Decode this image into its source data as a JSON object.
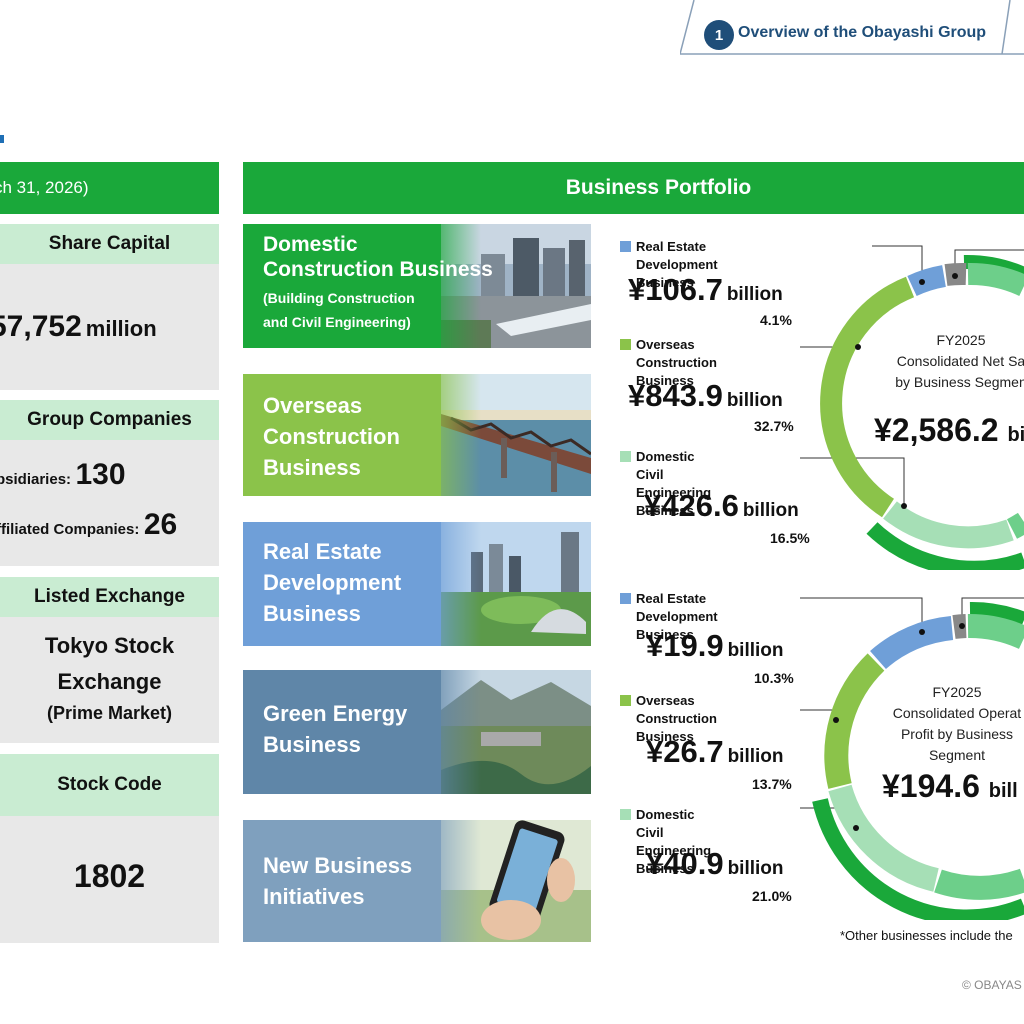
{
  "header": {
    "section_number": "1",
    "section_title": "Overview of the Obayashi Group"
  },
  "left_panel": {
    "heading": "ch 31, 2026)",
    "share_capital": {
      "label": "Share Capital",
      "value": "57,752",
      "unit": "million"
    },
    "group_companies": {
      "label": "Group Companies",
      "subsidiaries_label": "bsidiaries:",
      "subsidiaries_count": "130",
      "affiliated_label": "ffiliated Companies:",
      "affiliated_count": "26"
    },
    "listed_exchange": {
      "label": "Listed Exchange",
      "line1": "Tokyo Stock",
      "line2": "Exchange",
      "line3": "(Prime Market)"
    },
    "stock_code": {
      "label": "Stock Code",
      "value": "1802"
    }
  },
  "portfolio": {
    "heading": "Business Portfolio",
    "businesses": [
      {
        "title": "Domestic\nConstruction Business",
        "subtitle": "(Building Construction\nand Civil Engineering)",
        "color": "#1aa83a"
      },
      {
        "title": "Overseas\nConstruction\nBusiness",
        "subtitle": "",
        "color": "#8bc34a"
      },
      {
        "title": "Real Estate\nDevelopment\nBusiness",
        "subtitle": "",
        "color": "#6f9fd8"
      },
      {
        "title": "Green Energy\nBusiness",
        "subtitle": "",
        "color": "#5f86a8"
      },
      {
        "title": "New Business\nInitiatives",
        "subtitle": "",
        "color": "#7fa0be"
      }
    ]
  },
  "net_sales": {
    "center_label": "FY2025\nConsolidated Net Sa\nby Business Segmen",
    "center_value": "¥2,586.2",
    "center_unit": "bi",
    "segments": [
      {
        "name": "Real Estate\nDevelopment Business",
        "value": "¥106.7",
        "unit": "billion",
        "pct": "4.1%",
        "color": "#6f9fd8"
      },
      {
        "name": "Overseas\nConstruction Business",
        "value": "¥843.9",
        "unit": "billion",
        "pct": "32.7%",
        "color": "#8bc34a"
      },
      {
        "name": "Domestic Civil\nEngineering Business",
        "value": "¥426.6",
        "unit": "billion",
        "pct": "16.5%",
        "color": "#a6dfb6"
      }
    ]
  },
  "operating_profit": {
    "center_label": "FY2025\nConsolidated Operat\nProfit by Business\nSegment",
    "center_value": "¥194.6",
    "center_unit": "bill",
    "segments": [
      {
        "name": "Real Estate\nDevelopment Business",
        "value": "¥19.9",
        "unit": "billion",
        "pct": "10.3%",
        "color": "#6f9fd8"
      },
      {
        "name": "Overseas\nConstruction Business",
        "value": "¥26.7",
        "unit": "billion",
        "pct": "13.7%",
        "color": "#8bc34a"
      },
      {
        "name": "Domestic Civil\nEngineering Business",
        "value": "¥40.9",
        "unit": "billion",
        "pct": "21.0%",
        "color": "#a6dfb6"
      }
    ]
  },
  "footnote": "*Other businesses include the",
  "copyright": "© OBAYAS"
}
